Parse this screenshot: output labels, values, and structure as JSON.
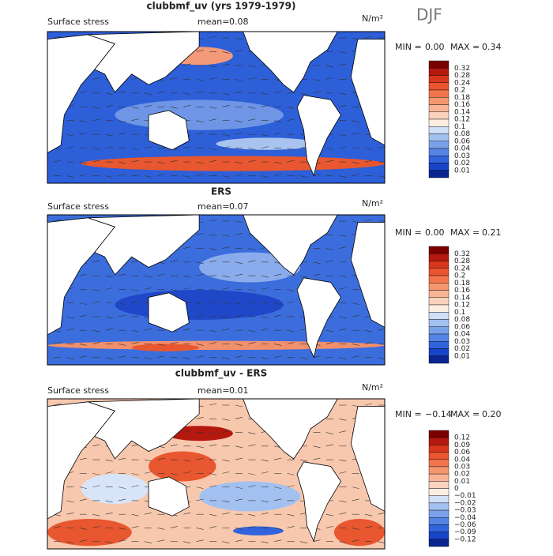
{
  "season": "DJF",
  "panels": [
    {
      "title": "clubbmf_uv (yrs 1979-1979)",
      "variable": "Surface stress",
      "mean_label": "mean=",
      "mean": "0.08",
      "units": "N/m²",
      "min_label": "MIN =",
      "min": "0.00",
      "max_label": "MAX =",
      "max": "0.34",
      "levels": [
        "0.32",
        "0.28",
        "0.24",
        "0.2",
        "0.18",
        "0.16",
        "0.14",
        "0.12",
        "0.1",
        "0.08",
        "0.06",
        "0.04",
        "0.03",
        "0.02",
        "0.01"
      ],
      "colors": [
        "#7a0000",
        "#b5180f",
        "#d8361c",
        "#ea5530",
        "#f2754c",
        "#f6966f",
        "#f9b496",
        "#fbd2bb",
        "#fdeee2",
        "#cfe0f7",
        "#a3c1f0",
        "#7aa2ea",
        "#5584e4",
        "#3164dc",
        "#1744c8",
        "#0a2490"
      ]
    },
    {
      "title": "ERS",
      "variable": "Surface stress",
      "mean_label": "mean=",
      "mean": "0.07",
      "units": "N/m²",
      "min_label": "MIN =",
      "min": "0.00",
      "max_label": "MAX =",
      "max": "0.21",
      "levels": [
        "0.32",
        "0.28",
        "0.24",
        "0.2",
        "0.18",
        "0.16",
        "0.14",
        "0.12",
        "0.1",
        "0.08",
        "0.06",
        "0.04",
        "0.03",
        "0.02",
        "0.01"
      ],
      "colors": [
        "#7a0000",
        "#b5180f",
        "#d8361c",
        "#ea5530",
        "#f2754c",
        "#f6966f",
        "#f9b496",
        "#fbd2bb",
        "#fdeee2",
        "#cfe0f7",
        "#a3c1f0",
        "#7aa2ea",
        "#5584e4",
        "#3164dc",
        "#1744c8",
        "#0a2490"
      ]
    },
    {
      "title": "clubbmf_uv - ERS",
      "variable": "Surface stress",
      "mean_label": "mean=",
      "mean": "0.01",
      "units": "N/m²",
      "min_label": "MIN =",
      "min": "−0.14",
      "max_label": "MAX =",
      "max": "0.20",
      "levels": [
        "0.12",
        "0.09",
        "0.06",
        "0.04",
        "0.03",
        "0.02",
        "0.01",
        "0",
        "−0.01",
        "−0.02",
        "−0.03",
        "−0.04",
        "−0.06",
        "−0.09",
        "−0.12"
      ],
      "colors": [
        "#7a0000",
        "#b5180f",
        "#d8361c",
        "#ea5530",
        "#f2754c",
        "#f6966f",
        "#f9b496",
        "#fbd2bb",
        "#fdeee2",
        "#cfe0f7",
        "#a3c1f0",
        "#7aa2ea",
        "#5584e4",
        "#3164dc",
        "#1744c8",
        "#0a2490"
      ]
    }
  ]
}
